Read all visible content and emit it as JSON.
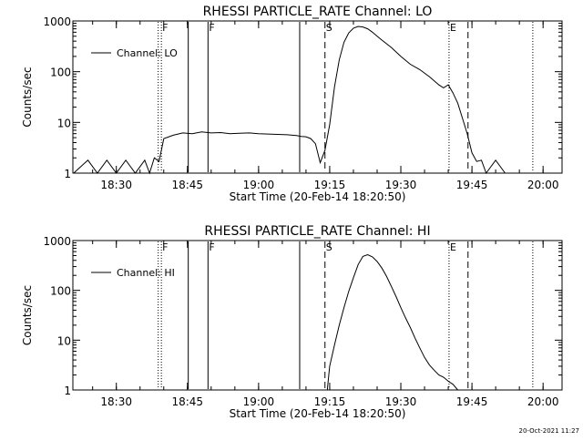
{
  "chart_data": [
    {
      "type": "line",
      "title": "RHESSI PARTICLE_RATE Channel: LO",
      "xlabel": "Start Time (20-Feb-14 18:20:50)",
      "ylabel": "Counts/sec",
      "yscale": "log",
      "xlim": [
        "18:20:50",
        "20:04:00"
      ],
      "ylim": [
        1,
        1000
      ],
      "x_ticks": [
        "18:30",
        "18:45",
        "19:00",
        "19:15",
        "19:30",
        "19:45",
        "20:00"
      ],
      "y_ticks": [
        "1",
        "10",
        "100",
        "1000"
      ],
      "legend": "top-left",
      "grid": false,
      "series": [
        {
          "name": "Channel: LO",
          "x": [
            "18:21",
            "18:24",
            "18:26",
            "18:28",
            "18:30",
            "18:32",
            "18:34",
            "18:36",
            "18:37",
            "18:38",
            "18:39",
            "18:40",
            "18:42",
            "18:44",
            "18:46",
            "18:48",
            "18:50",
            "18:52",
            "18:54",
            "18:56",
            "18:58",
            "19:00",
            "19:02",
            "19:04",
            "19:06",
            "19:08",
            "19:09",
            "19:10",
            "19:11",
            "19:12",
            "19:13",
            "19:14",
            "19:15",
            "19:16",
            "19:17",
            "19:18",
            "19:19",
            "19:20",
            "19:21",
            "19:22",
            "19:23",
            "19:24",
            "19:25",
            "19:26",
            "19:28",
            "19:30",
            "19:32",
            "19:34",
            "19:36",
            "19:38",
            "19:39",
            "19:40",
            "19:41",
            "19:42",
            "19:43",
            "19:44",
            "19:45",
            "19:46",
            "19:47",
            "19:48",
            "19:50",
            "19:52"
          ],
          "values": [
            1,
            1.8,
            1,
            1.8,
            1,
            1.8,
            1,
            1.8,
            1,
            2,
            1.7,
            4.8,
            5.6,
            6.2,
            6,
            6.5,
            6.2,
            6.3,
            6,
            6.1,
            6.2,
            6,
            5.9,
            5.8,
            5.7,
            5.5,
            5.3,
            5.2,
            4.8,
            3.8,
            1.6,
            2.8,
            9,
            50,
            170,
            380,
            580,
            720,
            780,
            760,
            700,
            600,
            500,
            420,
            300,
            200,
            140,
            110,
            80,
            55,
            48,
            55,
            38,
            24,
            12,
            6,
            2.5,
            1.7,
            1.8,
            1,
            1.8,
            1
          ]
        }
      ],
      "annotations": [
        {
          "label": "F",
          "x": "18:39:30",
          "style": "dotted"
        },
        {
          "label": "F",
          "x": "18:49:20",
          "style": "solid"
        },
        {
          "label": "S",
          "x": "19:14:00",
          "style": "dashed"
        },
        {
          "label": "E",
          "x": "19:40:10",
          "style": "dotted"
        },
        {
          "label": "",
          "x": "18:38:50",
          "style": "dotted"
        },
        {
          "label": "",
          "x": "18:45:10",
          "style": "solid"
        },
        {
          "label": "",
          "x": "19:08:40",
          "style": "solid"
        },
        {
          "label": "",
          "x": "19:44:10",
          "style": "dashed"
        },
        {
          "label": "",
          "x": "19:57:50",
          "style": "dotted"
        }
      ]
    },
    {
      "type": "line",
      "title": "RHESSI PARTICLE_RATE Channel: HI",
      "xlabel": "Start Time (20-Feb-14 18:20:50)",
      "ylabel": "Counts/sec",
      "yscale": "log",
      "xlim": [
        "18:20:50",
        "20:04:00"
      ],
      "ylim": [
        1,
        1000
      ],
      "x_ticks": [
        "18:30",
        "18:45",
        "19:00",
        "19:15",
        "19:30",
        "19:45",
        "20:00"
      ],
      "y_ticks": [
        "1",
        "10",
        "100",
        "1000"
      ],
      "legend": "top-left",
      "grid": false,
      "series": [
        {
          "name": "Channel: HI",
          "x": [
            "19:14:30",
            "19:15",
            "19:16",
            "19:17",
            "19:18",
            "19:19",
            "19:20",
            "19:21",
            "19:22",
            "19:23",
            "19:24",
            "19:25",
            "19:26",
            "19:27",
            "19:28",
            "19:29",
            "19:30",
            "19:31",
            "19:32",
            "19:33",
            "19:34",
            "19:35",
            "19:36",
            "19:37",
            "19:38",
            "19:39",
            "19:40",
            "19:41",
            "19:42"
          ],
          "values": [
            1,
            3,
            8,
            20,
            45,
            95,
            180,
            330,
            480,
            520,
            470,
            380,
            280,
            190,
            120,
            75,
            45,
            28,
            18,
            11,
            7,
            4.5,
            3.2,
            2.5,
            2,
            1.8,
            1.5,
            1.3,
            1
          ]
        }
      ],
      "annotations": [
        {
          "label": "F",
          "x": "18:39:30",
          "style": "dotted"
        },
        {
          "label": "F",
          "x": "18:49:20",
          "style": "solid"
        },
        {
          "label": "S",
          "x": "19:14:00",
          "style": "dashed"
        },
        {
          "label": "E",
          "x": "19:40:10",
          "style": "dotted"
        },
        {
          "label": "",
          "x": "18:38:50",
          "style": "dotted"
        },
        {
          "label": "",
          "x": "18:45:10",
          "style": "solid"
        },
        {
          "label": "",
          "x": "19:08:40",
          "style": "solid"
        },
        {
          "label": "",
          "x": "19:44:10",
          "style": "dashed"
        },
        {
          "label": "",
          "x": "19:57:50",
          "style": "dotted"
        }
      ]
    }
  ],
  "footer": {
    "timestamp": "20-Oct-2021 11:27"
  }
}
